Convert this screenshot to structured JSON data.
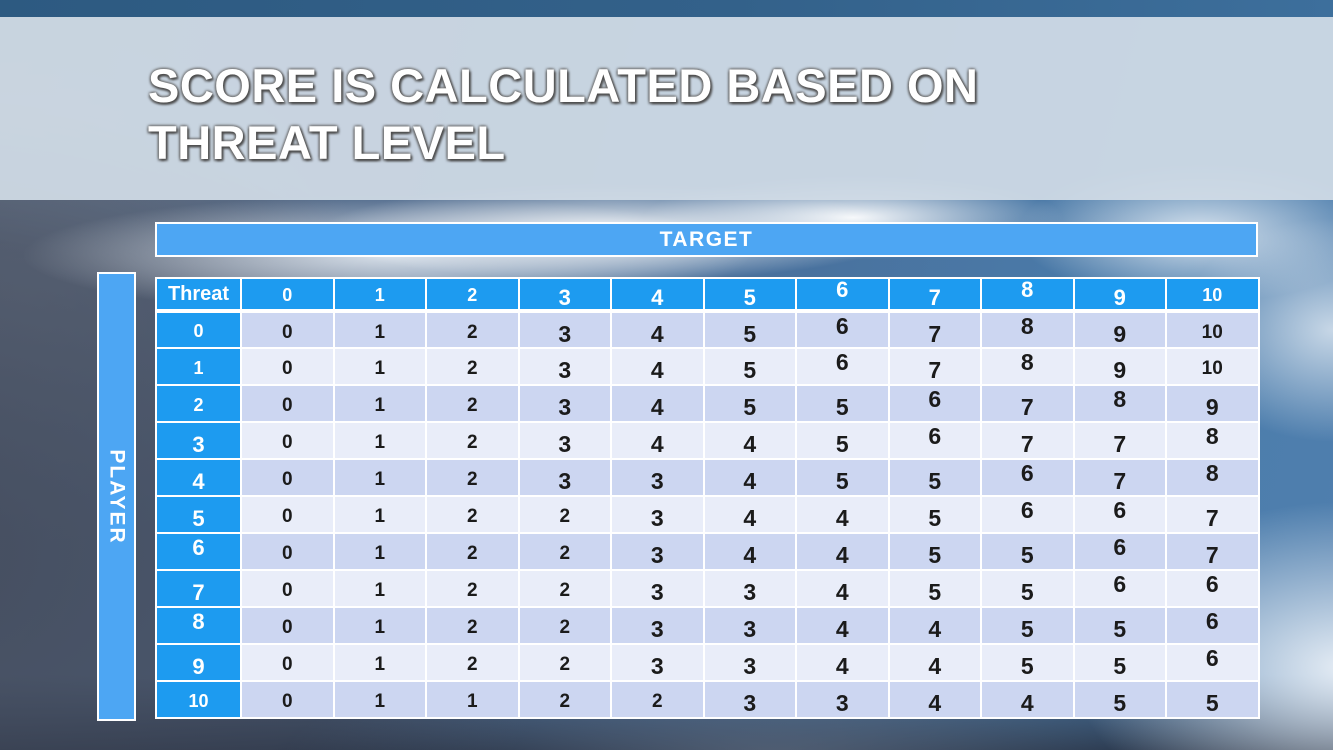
{
  "slide": {
    "title_line1": "SCORE IS CALCULATED BASED ON",
    "title_line2": "THREAT LEVEL"
  },
  "table": {
    "target_label": "TARGET",
    "player_label": "PLAYER",
    "corner_label": "Threat",
    "column_headers": [
      "0",
      "1",
      "2",
      "3",
      "4",
      "5",
      "6",
      "7",
      "8",
      "9",
      "10"
    ],
    "row_headers": [
      "0",
      "1",
      "2",
      "3",
      "4",
      "5",
      "6",
      "7",
      "8",
      "9",
      "10"
    ],
    "matrix": [
      [
        0,
        1,
        2,
        3,
        4,
        5,
        6,
        7,
        8,
        9,
        10
      ],
      [
        0,
        1,
        2,
        3,
        4,
        5,
        6,
        7,
        8,
        9,
        10
      ],
      [
        0,
        1,
        2,
        3,
        4,
        5,
        5,
        6,
        7,
        8,
        9
      ],
      [
        0,
        1,
        2,
        3,
        4,
        4,
        5,
        6,
        7,
        7,
        8
      ],
      [
        0,
        1,
        2,
        3,
        3,
        4,
        5,
        5,
        6,
        7,
        8
      ],
      [
        0,
        1,
        2,
        2,
        3,
        4,
        4,
        5,
        6,
        6,
        7
      ],
      [
        0,
        1,
        2,
        2,
        3,
        4,
        4,
        5,
        5,
        6,
        7
      ],
      [
        0,
        1,
        2,
        2,
        3,
        3,
        4,
        5,
        5,
        6,
        6
      ],
      [
        0,
        1,
        2,
        2,
        3,
        3,
        4,
        4,
        5,
        5,
        6
      ],
      [
        0,
        1,
        2,
        2,
        3,
        3,
        4,
        4,
        5,
        5,
        6
      ],
      [
        0,
        1,
        1,
        2,
        2,
        3,
        3,
        4,
        4,
        5,
        5
      ]
    ]
  },
  "colors": {
    "header_blue": "#1d9bf0",
    "band_blue": "#4da6f3",
    "row_even": "#ccd6f1",
    "row_odd": "#e9edf9",
    "cell_text": "#1b1b1b",
    "title_text": "#ffffff"
  }
}
